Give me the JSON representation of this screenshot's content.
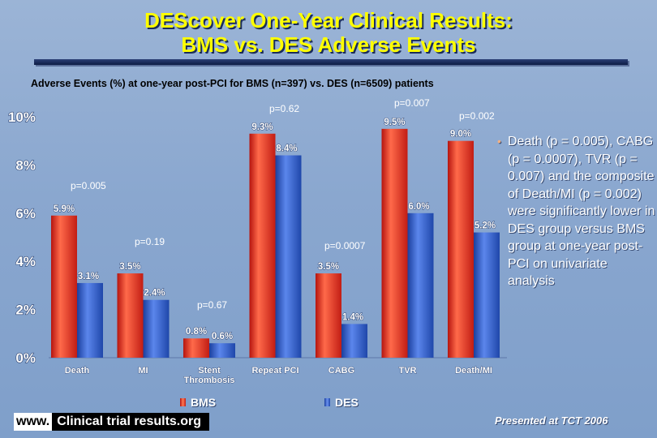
{
  "title_line1": "DEScover One-Year Clinical Results:",
  "title_line2": "BMS vs. DES Adverse Events",
  "subtitle": "Adverse Events (%) at one-year post-PCI for BMS (n=397) vs. DES (n=6509) patients",
  "bullet_text": "Death (p = 0.005), CABG (p = 0.0007), TVR (p = 0.007) and the composite of Death/MI (p = 0.002) were significantly lower in DES group versus BMS group at one-year post-PCI on univariate analysis",
  "footer": {
    "www": "www.",
    "site": "Clinical trial results.org",
    "presented": "Presented at TCT 2006"
  },
  "colors": {
    "bms": "#e8322a",
    "des": "#2c57c8",
    "title": "#ffff00"
  },
  "chart_data": {
    "type": "bar",
    "categories": [
      "Death",
      "MI",
      "Stent Thrombosis",
      "Repeat PCI",
      "CABG",
      "TVR",
      "Death/MI"
    ],
    "series": [
      {
        "name": "BMS",
        "values": [
          5.9,
          3.5,
          0.8,
          9.3,
          3.5,
          9.5,
          9.0
        ],
        "labels": [
          "5.9%",
          "3.5%",
          "0.8%",
          "9.3%",
          "3.5%",
          "9.5%",
          "9.0%"
        ]
      },
      {
        "name": "DES",
        "values": [
          3.1,
          2.4,
          0.6,
          8.4,
          1.4,
          6.0,
          5.2
        ],
        "labels": [
          "3.1%",
          "2.4%",
          "0.6%",
          "8.4%",
          "1.4%",
          "6.0%",
          "5.2%"
        ]
      }
    ],
    "p_values": [
      "p=0.005",
      "p=0.19",
      "p=0.67",
      "p=0.62",
      "p=0.0007",
      "p=0.007",
      "p=0.002"
    ],
    "yticks": [
      "0%",
      "2%",
      "4%",
      "6%",
      "8%",
      "10%"
    ],
    "ylim": [
      0,
      10
    ],
    "xlabel": "",
    "ylabel": ""
  }
}
